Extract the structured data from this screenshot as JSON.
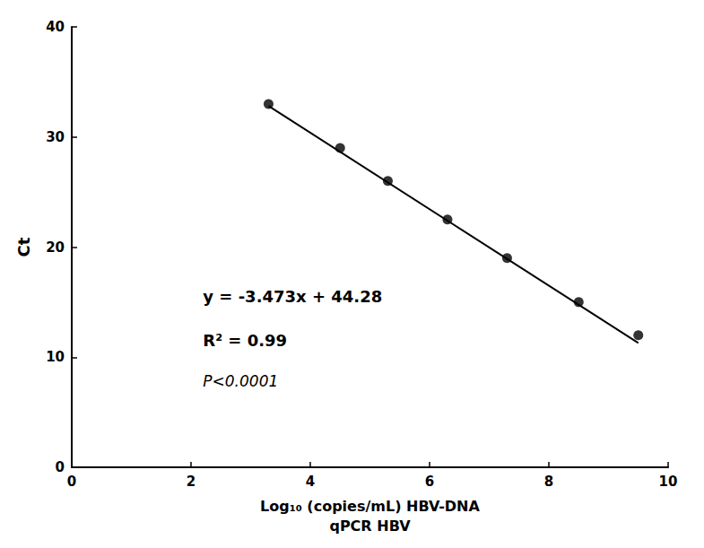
{
  "chart_data": {
    "type": "scatter",
    "xlabel": "Log₁₀ (copies/mL) HBV-DNA\nqPCR HBV",
    "ylabel": "Ct",
    "series": [
      {
        "type": "scatter",
        "x": [
          3.3,
          4.5,
          5.3,
          6.3,
          7.3,
          8.5,
          9.5
        ],
        "values": [
          33,
          29,
          26,
          22.5,
          19,
          15,
          12
        ],
        "color": "#000000",
        "marker": "circle"
      },
      {
        "type": "line",
        "x": [
          3.3,
          9.5
        ],
        "values": [
          32.8191,
          11.2865
        ],
        "color": "#000000",
        "line_style": "solid"
      }
    ],
    "annotations": [
      "y = -3.473x + 44.28",
      "R² = 0.99",
      "P<0.0001"
    ],
    "xlim": [
      0,
      10
    ],
    "xticks": [
      0,
      2,
      4,
      6,
      8,
      10
    ],
    "ylim": [
      0,
      40
    ],
    "yticks": [
      0,
      10,
      20,
      30,
      40
    ],
    "grid": false
  }
}
